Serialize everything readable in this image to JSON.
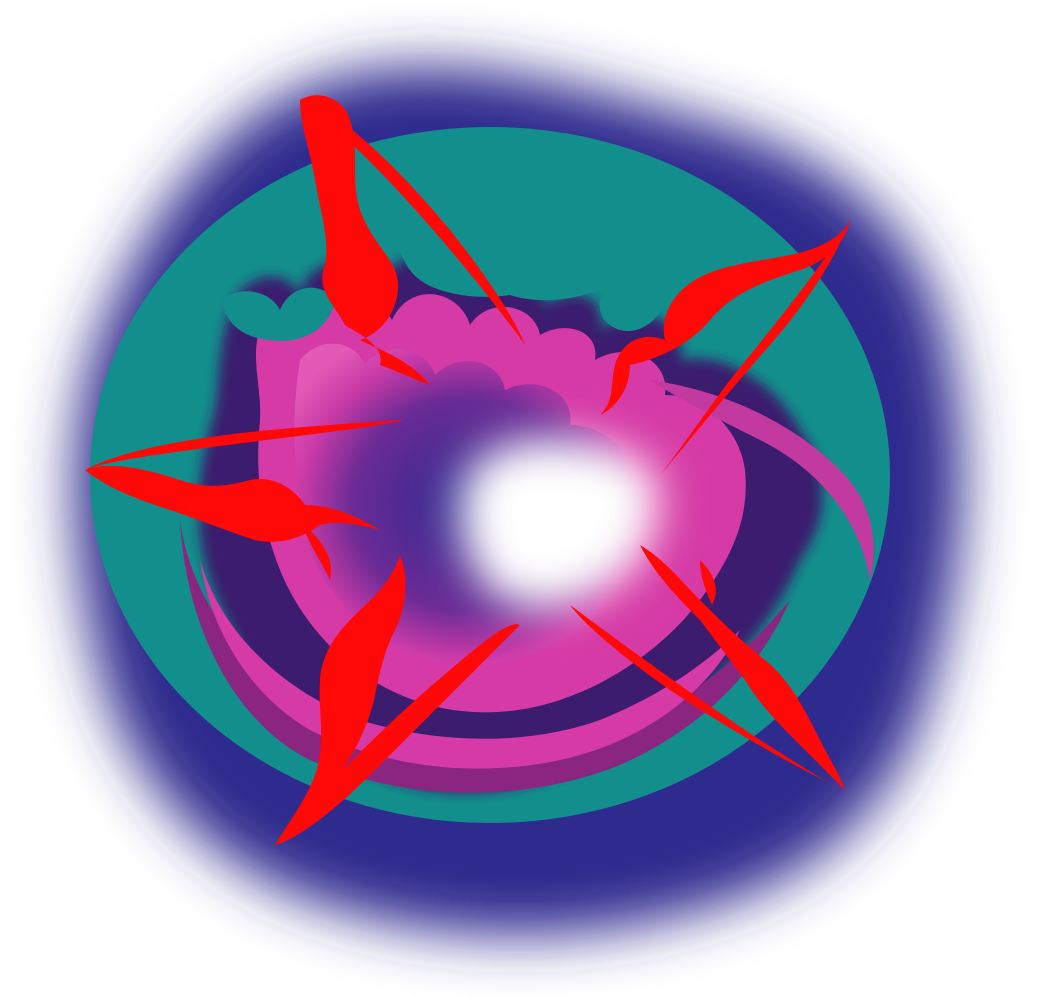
{
  "artwork": {
    "colors": {
      "background": "#ffffff",
      "aura": "#2e2a8e",
      "disc": "#128f8c",
      "cloud": "#d63aa6",
      "cloud_dark": "#8a2680",
      "core": "#ffffff",
      "flame": "#ff0808"
    },
    "flame_count": 5,
    "icons": [
      "red-flame-swirl",
      "teal-disc",
      "magenta-cloud",
      "white-core"
    ]
  }
}
